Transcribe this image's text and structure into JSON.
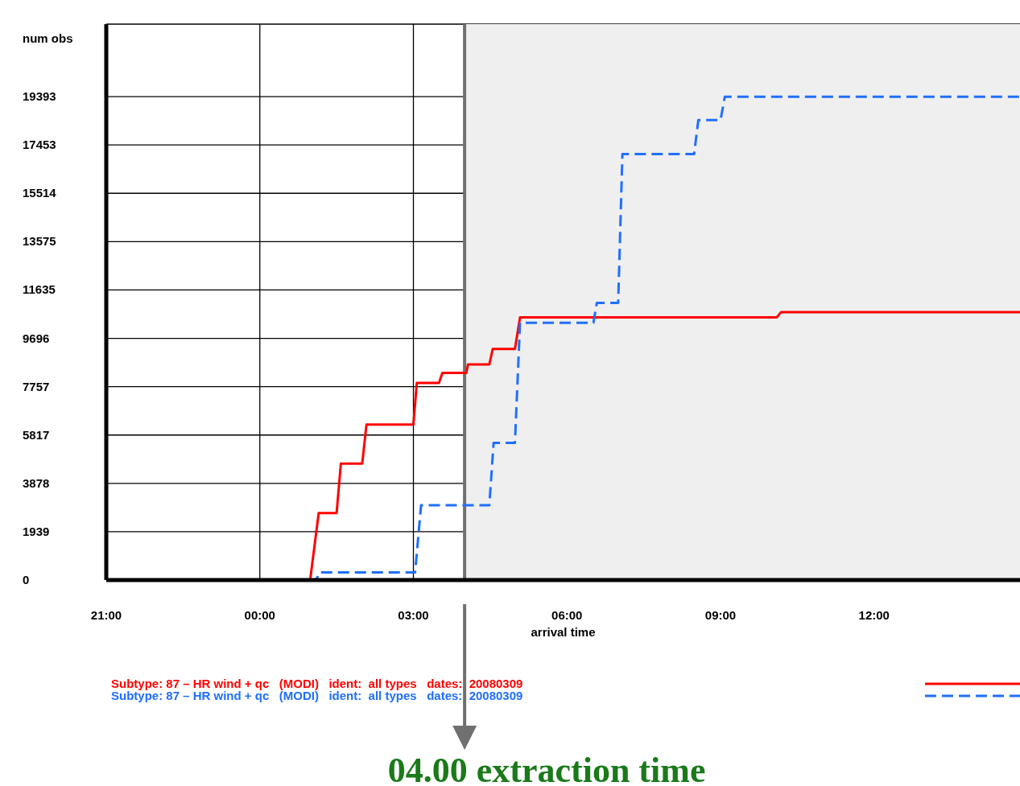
{
  "chart_data": {
    "type": "line",
    "xlabel": "arrival time",
    "ylabel": "num obs",
    "xlim": [
      "2008-03-08T21:00",
      "2008-03-09T14:51"
    ],
    "ylim": [
      0,
      22300
    ],
    "xticks": [
      {
        "value": "2008-03-08T21:00",
        "label": "21:00"
      },
      {
        "value": "2008-03-09T00:00",
        "label": "00:00"
      },
      {
        "value": "2008-03-09T03:00",
        "label": "03:00"
      },
      {
        "value": "2008-03-09T06:00",
        "label": "06:00"
      },
      {
        "value": "2008-03-09T09:00",
        "label": "09:00"
      },
      {
        "value": "2008-03-09T12:00",
        "label": "12:00"
      }
    ],
    "yticks": [
      0,
      1939,
      3878,
      5817,
      7757,
      9696,
      11635,
      13575,
      15514,
      17453,
      19393
    ],
    "grid": true,
    "legend": "bottom",
    "series": [
      {
        "name": "Subtype: 87 – HR wind + qc   (MODI)   ident:  all types   dates:  20080309",
        "color": "#ff0000",
        "line_style": "solid",
        "x": [
          "2008-03-08T21:00",
          "2008-03-09T00:59",
          "2008-03-09T01:09",
          "2008-03-09T01:30",
          "2008-03-09T01:35",
          "2008-03-09T02:00",
          "2008-03-09T02:05",
          "2008-03-09T03:00",
          "2008-03-09T03:04",
          "2008-03-09T03:30",
          "2008-03-09T03:34",
          "2008-03-09T04:02",
          "2008-03-09T04:04",
          "2008-03-09T04:29",
          "2008-03-09T04:33",
          "2008-03-09T04:59",
          "2008-03-09T05:05",
          "2008-03-09T10:06",
          "2008-03-09T10:11",
          "2008-03-09T14:51"
        ],
        "values": [
          0,
          0,
          2690,
          2690,
          4670,
          4670,
          6240,
          6240,
          7910,
          7910,
          8310,
          8310,
          8650,
          8650,
          9270,
          9270,
          10540,
          10540,
          10750,
          10750
        ]
      },
      {
        "name": "Subtype: 87 – HR wind + qc   (MODI)   ident:  all types   dates:  20080309",
        "color": "#1f6fff",
        "line_style": "dashed",
        "x": [
          "2008-03-08T21:00",
          "2008-03-09T01:06",
          "2008-03-09T01:10",
          "2008-03-09T03:02",
          "2008-03-09T03:09",
          "2008-03-09T04:29",
          "2008-03-09T04:34",
          "2008-03-09T04:59",
          "2008-03-09T05:05",
          "2008-03-09T06:31",
          "2008-03-09T06:35",
          "2008-03-09T07:00",
          "2008-03-09T07:05",
          "2008-03-09T08:29",
          "2008-03-09T08:34",
          "2008-03-09T09:00",
          "2008-03-09T09:05",
          "2008-03-09T14:51"
        ],
        "values": [
          0,
          0,
          310,
          310,
          3000,
          3000,
          5500,
          5500,
          10320,
          10320,
          11120,
          11120,
          17090,
          17090,
          18450,
          18450,
          19390,
          19390
        ]
      }
    ],
    "ref_lines": [
      {
        "axis": "x",
        "value": "2008-03-09T04:00",
        "label": "04.00 extraction time",
        "color": "#707070"
      }
    ],
    "bands": [
      {
        "axis": "x",
        "from": "2008-03-09T04:00",
        "to": "2008-03-09T14:51",
        "color": "#efefef"
      }
    ]
  }
}
